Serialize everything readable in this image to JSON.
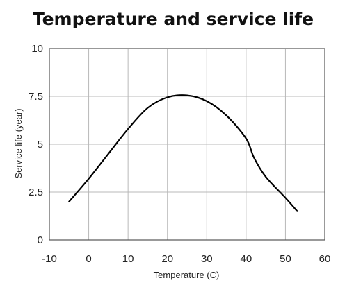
{
  "chart_data": {
    "type": "line",
    "title": "Temperature and service life",
    "xlabel": "Temperature (C)",
    "ylabel": "Service life (year)",
    "xlim": [
      -10,
      60
    ],
    "ylim": [
      0,
      10
    ],
    "xticks": [
      -10,
      0,
      10,
      20,
      30,
      40,
      50,
      60
    ],
    "yticks": [
      0,
      2.5,
      5,
      7.5,
      10
    ],
    "ytick_labels": [
      "0",
      "2.5",
      "5",
      "7.5",
      "10"
    ],
    "grid": true,
    "series": [
      {
        "color": "#000000",
        "x": [
          -5,
          0,
          5,
          10,
          15,
          20,
          25,
          30,
          35,
          40,
          42,
          45,
          50,
          53
        ],
        "y": [
          2.0,
          3.2,
          4.5,
          5.8,
          6.9,
          7.45,
          7.55,
          7.25,
          6.5,
          5.3,
          4.3,
          3.3,
          2.2,
          1.5
        ]
      }
    ]
  },
  "colors": {
    "grid": "#b8b8b8",
    "axis": "#555555",
    "line": "#000000"
  }
}
